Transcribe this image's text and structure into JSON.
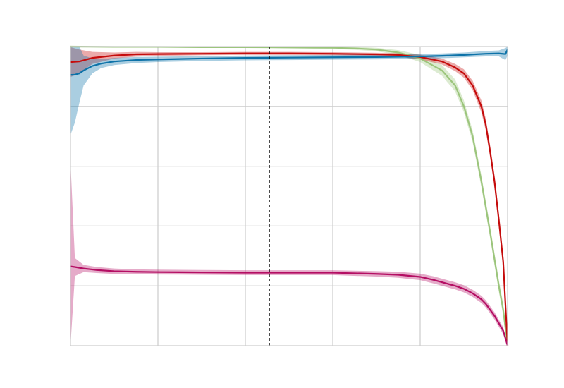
{
  "chart_data": {
    "type": "line",
    "title": "",
    "xlabel": "",
    "ylabel": "",
    "xlim": [
      0,
      1
    ],
    "ylim": [
      0,
      1
    ],
    "grid": true,
    "legend": "none",
    "threshold": {
      "x": 0.455,
      "style": "dashed",
      "color": "#000000"
    },
    "series": [
      {
        "color": "#9cc57c",
        "x": [
          0,
          0.1,
          0.2,
          0.3,
          0.4,
          0.5,
          0.6,
          0.65,
          0.7,
          0.75,
          0.8,
          0.85,
          0.88,
          0.9,
          0.92,
          0.94,
          0.96,
          0.98,
          0.99,
          1.0
        ],
        "y": [
          1.0,
          0.999,
          0.999,
          0.998,
          0.998,
          0.997,
          0.996,
          0.994,
          0.99,
          0.98,
          0.96,
          0.92,
          0.87,
          0.8,
          0.7,
          0.55,
          0.38,
          0.2,
          0.12,
          0.0
        ],
        "band": [
          0.002,
          0.002,
          0.002,
          0.002,
          0.002,
          0.003,
          0.004,
          0.005,
          0.006,
          0.008,
          0.012,
          0.018,
          0.02,
          0.02,
          0.02,
          0.02,
          0.02,
          0.02,
          0.02,
          0.0
        ]
      },
      {
        "color": "#c50c0c",
        "x": [
          0,
          0.02,
          0.05,
          0.1,
          0.15,
          0.2,
          0.3,
          0.4,
          0.5,
          0.6,
          0.7,
          0.75,
          0.8,
          0.85,
          0.88,
          0.9,
          0.92,
          0.94,
          0.95,
          0.96,
          0.97,
          0.98,
          0.99,
          1.0
        ],
        "y": [
          0.948,
          0.95,
          0.962,
          0.97,
          0.974,
          0.975,
          0.976,
          0.977,
          0.977,
          0.976,
          0.974,
          0.972,
          0.965,
          0.95,
          0.93,
          0.91,
          0.87,
          0.8,
          0.74,
          0.65,
          0.55,
          0.42,
          0.28,
          0.0
        ],
        "band": [
          0.05,
          0.04,
          0.02,
          0.01,
          0.008,
          0.006,
          0.005,
          0.005,
          0.005,
          0.005,
          0.005,
          0.006,
          0.008,
          0.01,
          0.012,
          0.014,
          0.016,
          0.02,
          0.02,
          0.02,
          0.02,
          0.02,
          0.02,
          0.0
        ]
      },
      {
        "color": "#0c72a8",
        "x": [
          0,
          0.01,
          0.02,
          0.03,
          0.05,
          0.07,
          0.1,
          0.15,
          0.2,
          0.3,
          0.4,
          0.5,
          0.6,
          0.7,
          0.8,
          0.85,
          0.9,
          0.95,
          0.98,
          0.995,
          1.0
        ],
        "y": [
          0.905,
          0.906,
          0.91,
          0.92,
          0.935,
          0.943,
          0.95,
          0.955,
          0.957,
          0.96,
          0.962,
          0.963,
          0.964,
          0.965,
          0.967,
          0.969,
          0.972,
          0.976,
          0.977,
          0.975,
          0.99
        ],
        "band": [
          0.2,
          0.16,
          0.1,
          0.05,
          0.025,
          0.015,
          0.012,
          0.01,
          0.009,
          0.008,
          0.008,
          0.008,
          0.008,
          0.008,
          0.008,
          0.008,
          0.008,
          0.009,
          0.01,
          0.02,
          0.02
        ]
      },
      {
        "color": "#b40e63",
        "x": [
          0,
          0.01,
          0.03,
          0.06,
          0.1,
          0.15,
          0.2,
          0.3,
          0.4,
          0.5,
          0.6,
          0.7,
          0.75,
          0.8,
          0.83,
          0.86,
          0.88,
          0.9,
          0.92,
          0.94,
          0.95,
          0.96,
          0.97,
          0.98,
          0.99,
          1.0
        ],
        "y": [
          0.265,
          0.263,
          0.258,
          0.253,
          0.249,
          0.247,
          0.246,
          0.245,
          0.244,
          0.244,
          0.244,
          0.24,
          0.237,
          0.23,
          0.22,
          0.208,
          0.2,
          0.19,
          0.175,
          0.155,
          0.14,
          0.12,
          0.1,
          0.075,
          0.05,
          0.0
        ],
        "band": [
          0.35,
          0.03,
          0.012,
          0.01,
          0.009,
          0.008,
          0.008,
          0.008,
          0.008,
          0.008,
          0.008,
          0.009,
          0.01,
          0.011,
          0.012,
          0.012,
          0.012,
          0.012,
          0.012,
          0.012,
          0.012,
          0.012,
          0.012,
          0.012,
          0.012,
          0.0
        ]
      }
    ]
  }
}
